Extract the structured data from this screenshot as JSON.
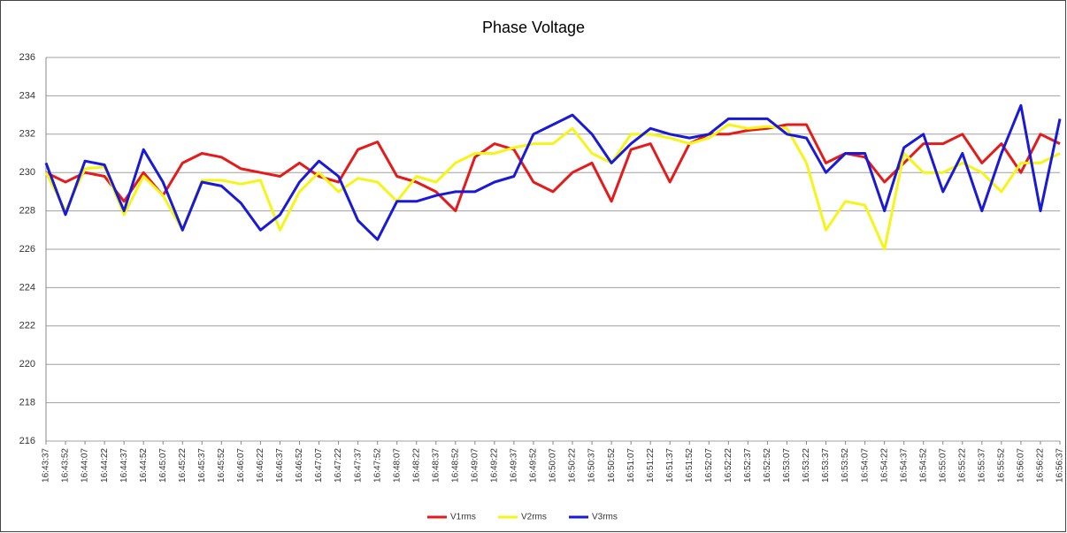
{
  "chart_data": {
    "type": "line",
    "title": "Phase Voltage",
    "categories": [
      "16:43:37",
      "16:43:52",
      "16:44:07",
      "16:44:22",
      "16:44:37",
      "16:44:52",
      "16:45:07",
      "16:45:22",
      "16:45:37",
      "16:45:52",
      "16:46:07",
      "16:46:22",
      "16:46:37",
      "16:46:52",
      "16:47:07",
      "16:47:22",
      "16:47:37",
      "16:47:52",
      "16:48:07",
      "16:48:22",
      "16:48:37",
      "16:48:52",
      "16:49:07",
      "16:49:22",
      "16:49:37",
      "16:49:52",
      "16:50:07",
      "16:50:22",
      "16:50:37",
      "16:50:52",
      "16:51:07",
      "16:51:22",
      "16:51:37",
      "16:51:52",
      "16:52:07",
      "16:52:22",
      "16:52:37",
      "16:52:52",
      "16:53:07",
      "16:53:22",
      "16:53:37",
      "16:53:52",
      "16:54:07",
      "16:54:22",
      "16:54:37",
      "16:54:52",
      "16:55:07",
      "16:55:22",
      "16:55:37",
      "16:55:52",
      "16:56:07",
      "16:56:22",
      "16:56:37"
    ],
    "series": [
      {
        "name": "V1rms",
        "color": "#e31b1b",
        "values": [
          230,
          229.5,
          230,
          229.8,
          228.5,
          230,
          228.8,
          230.5,
          231,
          230.8,
          230.2,
          230,
          229.8,
          230.5,
          229.8,
          229.5,
          231.2,
          231.6,
          229.8,
          229.5,
          229,
          228,
          230.8,
          231.5,
          231.2,
          229.5,
          229,
          230,
          230.5,
          228.5,
          231.2,
          231.5,
          229.5,
          231.5,
          232,
          232,
          232.2,
          232.3,
          232.5,
          232.5,
          230.5,
          231,
          230.8,
          229.5,
          230.5,
          231.5,
          231.5,
          232,
          230.5,
          231.5,
          230,
          232,
          231.5
        ]
      },
      {
        "name": "V2rms",
        "color": "#f5f51a",
        "values": [
          230,
          228,
          230.2,
          230.3,
          227.8,
          229.8,
          228.8,
          227,
          229.6,
          229.6,
          229.4,
          229.6,
          227,
          229,
          230,
          229,
          229.7,
          229.5,
          228.5,
          229.8,
          229.5,
          230.5,
          231,
          231,
          231.3,
          231.5,
          231.5,
          232.3,
          231,
          230.5,
          232,
          232,
          231.8,
          231.5,
          231.8,
          232.5,
          232.3,
          232.4,
          232.3,
          230.5,
          227,
          228.5,
          228.3,
          226,
          231,
          230,
          230,
          230.5,
          230,
          229,
          230.5,
          230.5,
          231
        ]
      },
      {
        "name": "V3rms",
        "color": "#1a1ad6",
        "values": [
          230.5,
          227.8,
          230.6,
          230.4,
          228,
          231.2,
          229.5,
          227,
          229.5,
          229.3,
          228.4,
          227,
          227.8,
          229.5,
          230.6,
          229.8,
          227.5,
          226.5,
          228.5,
          228.5,
          228.8,
          229,
          229,
          229.5,
          229.8,
          232,
          232.5,
          233,
          232,
          230.5,
          231.5,
          232.3,
          232,
          231.8,
          232,
          232.8,
          232.8,
          232.8,
          232,
          231.8,
          230,
          231,
          231,
          228,
          231.3,
          232,
          229,
          231,
          228,
          231,
          233.5,
          228,
          232.8
        ]
      }
    ],
    "ylim": [
      216,
      236
    ],
    "yticks": [
      216,
      218,
      220,
      222,
      224,
      226,
      228,
      230,
      232,
      234,
      236
    ],
    "grid": true,
    "legend": "bottom"
  }
}
